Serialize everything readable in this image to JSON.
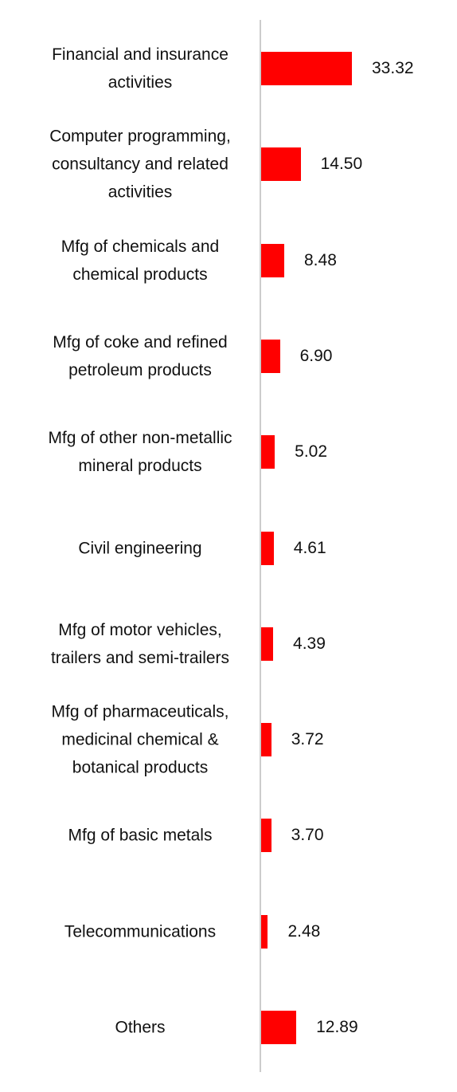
{
  "chart_data": {
    "type": "bar",
    "orientation": "horizontal",
    "color": "#ff0000",
    "categories": [
      "Financial and insurance activities",
      "Computer programming, consultancy and related activities",
      "Mfg of chemicals and chemical products",
      "Mfg of coke and refined petroleum products",
      "Mfg of other non-metallic mineral products",
      "Civil engineering",
      "Mfg of motor vehicles, trailers and semi-trailers",
      "Mfg of pharmaceuticals, medicinal chemical & botanical products",
      "Mfg of basic metals",
      "Telecommunications",
      "Others"
    ],
    "values": [
      33.32,
      14.5,
      8.48,
      6.9,
      5.02,
      4.61,
      4.39,
      3.72,
      3.7,
      2.48,
      12.89
    ],
    "value_labels": [
      "33.32",
      "14.50",
      "8.48",
      "6.90",
      "5.02",
      "4.61",
      "4.39",
      "3.72",
      "3.70",
      "2.48",
      "12.89"
    ]
  }
}
